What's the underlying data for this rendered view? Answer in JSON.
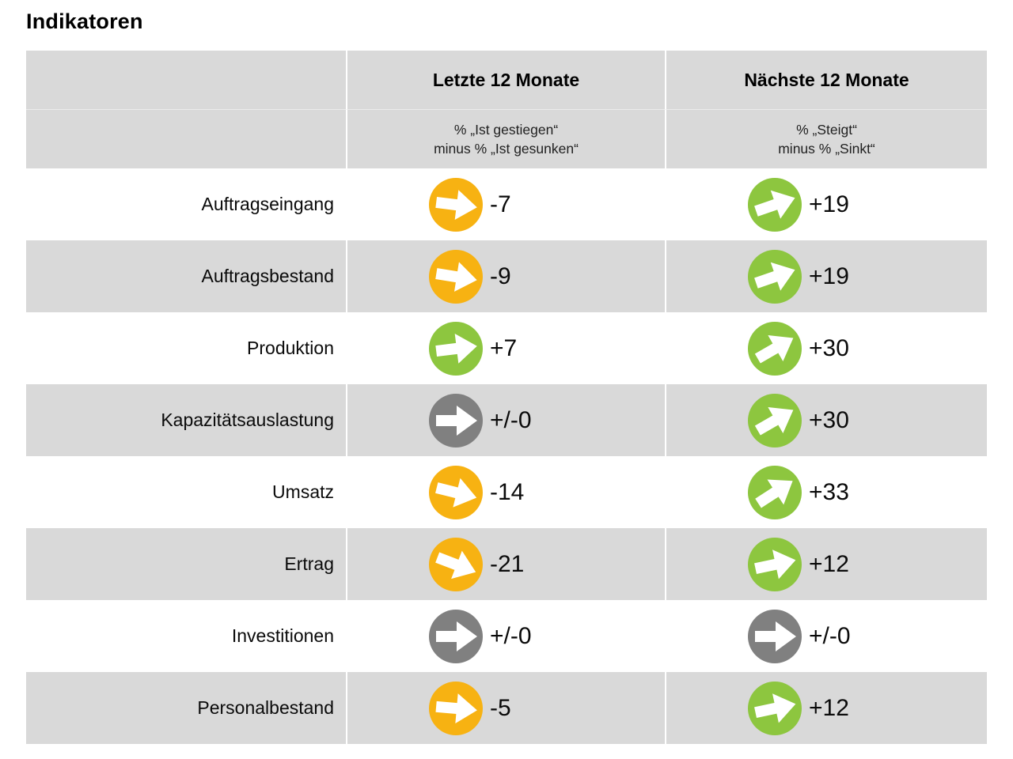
{
  "title": "Indikatoren",
  "colors": {
    "up": "#8DC63F",
    "down": "#F7B212",
    "flat": "#808080",
    "arrow": "#FFFFFF",
    "row_alt": "#D9D9D9",
    "text": "#0A0A0A"
  },
  "chart_data": {
    "type": "table",
    "title": "Indikatoren",
    "columns": [
      {
        "header": "Letzte 12 Monate",
        "sub1": "% „Ist gestiegen“",
        "sub2": "minus % „Ist gesunken“"
      },
      {
        "header": "Nächste 12 Monate",
        "sub1": "% „Steigt“",
        "sub2": "minus % „Sinkt“"
      }
    ],
    "rows": [
      {
        "label": "Auftragseingang",
        "last12": {
          "display": "-7",
          "value": -7,
          "trend": "down"
        },
        "next12": {
          "display": "+19",
          "value": 19,
          "trend": "up"
        }
      },
      {
        "label": "Auftragsbestand",
        "last12": {
          "display": "-9",
          "value": -9,
          "trend": "down"
        },
        "next12": {
          "display": "+19",
          "value": 19,
          "trend": "up"
        }
      },
      {
        "label": "Produktion",
        "last12": {
          "display": "+7",
          "value": 7,
          "trend": "up"
        },
        "next12": {
          "display": "+30",
          "value": 30,
          "trend": "up"
        }
      },
      {
        "label": "Kapazitätsauslastung",
        "last12": {
          "display": "+/-0",
          "value": 0,
          "trend": "flat"
        },
        "next12": {
          "display": "+30",
          "value": 30,
          "trend": "up"
        }
      },
      {
        "label": "Umsatz",
        "last12": {
          "display": "-14",
          "value": -14,
          "trend": "down"
        },
        "next12": {
          "display": "+33",
          "value": 33,
          "trend": "up"
        }
      },
      {
        "label": "Ertrag",
        "last12": {
          "display": "-21",
          "value": -21,
          "trend": "down"
        },
        "next12": {
          "display": "+12",
          "value": 12,
          "trend": "up"
        }
      },
      {
        "label": "Investitionen",
        "last12": {
          "display": "+/-0",
          "value": 0,
          "trend": "flat"
        },
        "next12": {
          "display": "+/-0",
          "value": 0,
          "trend": "flat"
        }
      },
      {
        "label": "Personalbestand",
        "last12": {
          "display": "-5",
          "value": -5,
          "trend": "down"
        },
        "next12": {
          "display": "+12",
          "value": 12,
          "trend": "up"
        }
      }
    ]
  }
}
